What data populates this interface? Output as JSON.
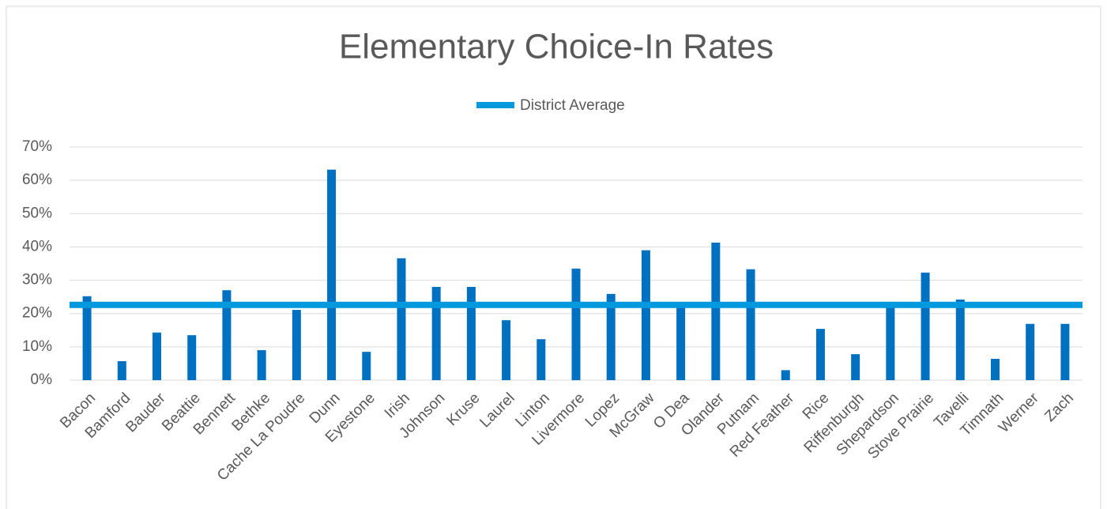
{
  "chart_data": {
    "type": "bar",
    "title": "Elementary Choice-In Rates",
    "categories": [
      "Bacon",
      "Bamford",
      "Bauder",
      "Beattie",
      "Bennett",
      "Bethke",
      "Cache La Poudre",
      "Dunn",
      "Eyestone",
      "Irish",
      "Johnson",
      "Kruse",
      "Laurel",
      "Linton",
      "Livermore",
      "Lopez",
      "McGraw",
      "O Dea",
      "Olander",
      "Putnam",
      "Red Feather",
      "Rice",
      "Riffenburgh",
      "Shepardson",
      "Stove Prairie",
      "Tavelli",
      "Timnath",
      "Werner",
      "Zach"
    ],
    "values": [
      25.2,
      5.7,
      14.3,
      13.5,
      27,
      9,
      21.1,
      63.2,
      8.5,
      36.6,
      28,
      28,
      18,
      12.3,
      33.5,
      25.9,
      39,
      22.3,
      41.3,
      33.3,
      3,
      15.4,
      7.8,
      23.5,
      32.3,
      24.2,
      6.4,
      16.9,
      16.9
    ],
    "color": "#0070c0",
    "average": {
      "name": "District Average",
      "value": 22.6,
      "color": "#0099dd"
    },
    "ylim": [
      0,
      70
    ],
    "yticks": [
      {
        "value": 0,
        "label": "0%"
      },
      {
        "value": 10,
        "label": "10%"
      },
      {
        "value": 20,
        "label": "20%"
      },
      {
        "value": 30,
        "label": "30%"
      },
      {
        "value": 40,
        "label": "40%"
      },
      {
        "value": 50,
        "label": "50%"
      },
      {
        "value": 60,
        "label": "60%"
      },
      {
        "value": 70,
        "label": "70%"
      }
    ],
    "grid": true,
    "legend": "top"
  }
}
